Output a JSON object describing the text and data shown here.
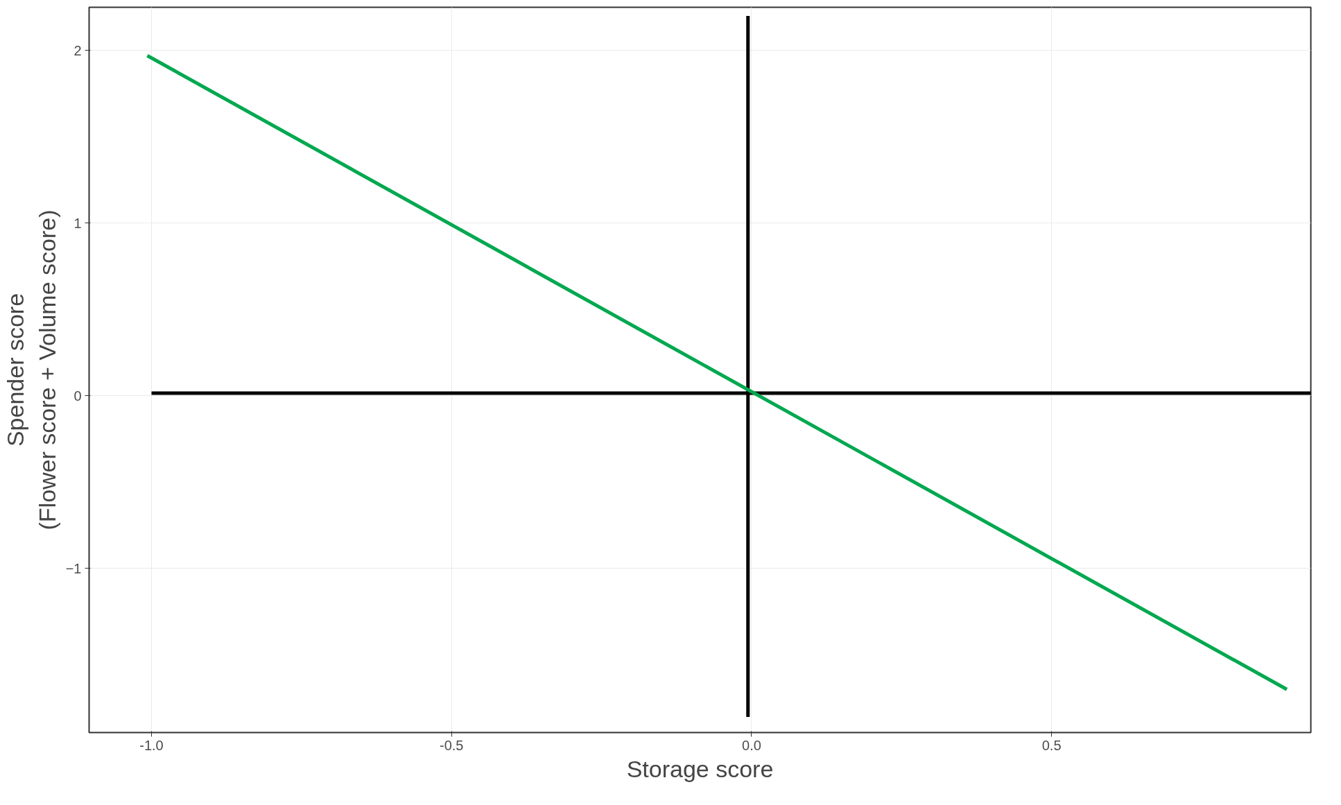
{
  "chart_data": {
    "type": "line",
    "xlabel": "Storage score",
    "ylabel": "Spender score\n(Flower score + Volume score)",
    "xlim": [
      -1.104,
      0.932
    ],
    "ylim": [
      -1.95,
      2.25
    ],
    "xticks": [
      {
        "value": -1.0,
        "label": "-1.0"
      },
      {
        "value": -0.5,
        "label": "-0.5"
      },
      {
        "value": 0.0,
        "label": "0.0"
      },
      {
        "value": 0.5,
        "label": "0.5"
      }
    ],
    "yticks": [
      -1,
      0,
      1,
      2
    ],
    "grid": true,
    "line_style": "solid",
    "series": [
      {
        "color": "#000000",
        "x": [
          -1.0,
          0.932
        ],
        "values": [
          0.015,
          0.015
        ]
      },
      {
        "color": "#000000",
        "x": [
          -0.006,
          -0.006
        ],
        "values": [
          2.2,
          -1.86
        ]
      },
      {
        "color": "#00a84f",
        "x": [
          -1.007,
          0.892
        ],
        "values": [
          1.97,
          -1.7
        ]
      }
    ]
  }
}
